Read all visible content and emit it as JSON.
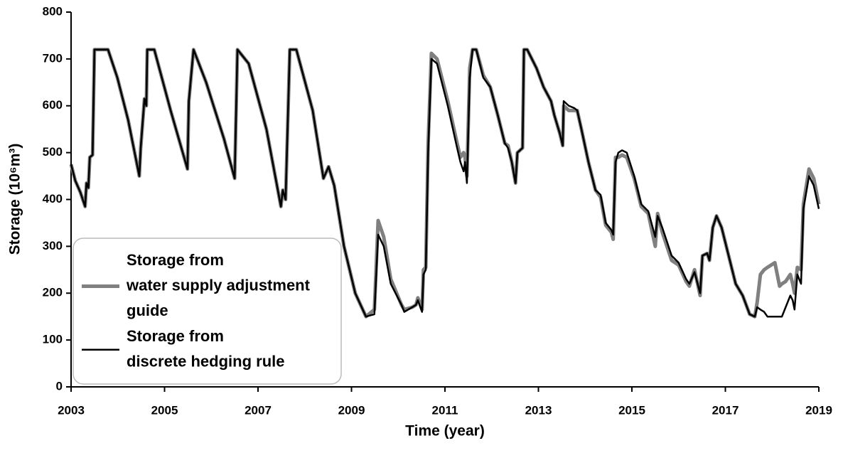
{
  "chart_data": {
    "type": "line",
    "xlabel": "Time (year)",
    "ylabel": "Storage (10⁶m³)",
    "xlim": [
      2003,
      2019
    ],
    "xticks": [
      2003,
      2005,
      2007,
      2009,
      2011,
      2013,
      2015,
      2017,
      2019
    ],
    "ylim": [
      0,
      800
    ],
    "yticks": [
      0,
      100,
      200,
      300,
      400,
      500,
      600,
      700,
      800
    ],
    "grid": false,
    "legend": "lower left",
    "x": [
      2003,
      2003.09,
      2003.2,
      2003.3,
      2003.33,
      2003.37,
      2003.4,
      2003.46,
      2003.5,
      2003.79,
      2003.99,
      2004.22,
      2004.46,
      2004.49,
      2004.57,
      2004.61,
      2004.63,
      2004.78,
      2005.13,
      2005.49,
      2005.52,
      2005.62,
      2005.89,
      2006.27,
      2006.5,
      2006.56,
      2006.8,
      2007.18,
      2007.49,
      2007.53,
      2007.59,
      2007.68,
      2007.82,
      2008.17,
      2008.4,
      2008.51,
      2008.63,
      2008.84,
      2009.08,
      2009.31,
      2009.49,
      2009.57,
      2009.69,
      2009.84,
      2010.07,
      2010.13,
      2010.3,
      2010.38,
      2010.42,
      2010.51,
      2010.54,
      2010.59,
      2010.64,
      2010.71,
      2010.83,
      2011.06,
      2011.26,
      2011.33,
      2011.4,
      2011.43,
      2011.47,
      2011.53,
      2011.59,
      2011.67,
      2011.82,
      2011.97,
      2012.13,
      2012.28,
      2012.35,
      2012.43,
      2012.51,
      2012.55,
      2012.66,
      2012.69,
      2012.76,
      2012.96,
      2013.11,
      2013.27,
      2013.34,
      2013.46,
      2013.52,
      2013.54,
      2013.65,
      2013.77,
      2013.83,
      2013.92,
      2014.07,
      2014.22,
      2014.33,
      2014.44,
      2014.56,
      2014.6,
      2014.65,
      2014.71,
      2014.79,
      2014.89,
      2015.05,
      2015.2,
      2015.35,
      2015.5,
      2015.55,
      2015.65,
      2015.85,
      2016,
      2016.16,
      2016.23,
      2016.34,
      2016.46,
      2016.51,
      2016.61,
      2016.66,
      2016.73,
      2016.81,
      2016.92,
      2017.07,
      2017.22,
      2017.37,
      2017.52,
      2017.63,
      2017.68,
      2017.75,
      2017.83,
      2017.9,
      2018.06,
      2018.16,
      2018.21,
      2018.29,
      2018.39,
      2018.44,
      2018.48,
      2018.54,
      2018.62,
      2018.67,
      2018.79,
      2018.89,
      2019
    ],
    "series": [
      {
        "name": "Storage from water supply adjustment guide",
        "color": "#808080",
        "values": [
          475,
          440,
          415,
          385,
          435,
          425,
          490,
          495,
          720,
          720,
          660,
          570,
          450,
          510,
          615,
          600,
          720,
          720,
          590,
          465,
          610,
          720,
          650,
          530,
          445,
          720,
          690,
          550,
          385,
          420,
          400,
          720,
          720,
          590,
          445,
          470,
          430,
          300,
          200,
          150,
          165,
          355,
          320,
          230,
          175,
          165,
          170,
          175,
          190,
          165,
          250,
          255,
          520,
          712,
          700,
          610,
          520,
          490,
          500,
          490,
          450,
          680,
          720,
          720,
          665,
          640,
          580,
          520,
          515,
          480,
          435,
          500,
          510,
          720,
          720,
          680,
          640,
          610,
          580,
          540,
          515,
          600,
          590,
          590,
          590,
          550,
          480,
          420,
          405,
          345,
          330,
          315,
          490,
          490,
          495,
          490,
          445,
          385,
          370,
          300,
          370,
          330,
          270,
          260,
          225,
          215,
          250,
          195,
          280,
          285,
          270,
          340,
          365,
          340,
          280,
          220,
          195,
          155,
          150,
          180,
          240,
          250,
          255,
          265,
          215,
          220,
          225,
          240,
          220,
          200,
          255,
          250,
          390,
          465,
          445,
          390
        ]
      },
      {
        "name": "Storage from discrete hedging rule",
        "color": "#000000",
        "values": [
          475,
          440,
          415,
          385,
          435,
          425,
          490,
          495,
          720,
          720,
          660,
          570,
          450,
          510,
          615,
          600,
          720,
          720,
          590,
          465,
          610,
          720,
          650,
          530,
          445,
          720,
          690,
          550,
          385,
          420,
          400,
          720,
          720,
          590,
          445,
          470,
          430,
          300,
          200,
          150,
          155,
          325,
          300,
          220,
          175,
          160,
          170,
          175,
          185,
          160,
          240,
          250,
          500,
          700,
          690,
          600,
          510,
          480,
          460,
          480,
          435,
          660,
          720,
          720,
          660,
          640,
          580,
          520,
          510,
          480,
          435,
          500,
          510,
          720,
          720,
          680,
          640,
          610,
          580,
          540,
          515,
          610,
          600,
          595,
          590,
          550,
          480,
          420,
          410,
          350,
          335,
          325,
          480,
          500,
          505,
          500,
          450,
          390,
          375,
          320,
          365,
          340,
          280,
          265,
          230,
          220,
          245,
          200,
          280,
          285,
          270,
          340,
          365,
          340,
          280,
          220,
          195,
          155,
          150,
          170,
          165,
          160,
          150,
          150,
          150,
          150,
          170,
          195,
          185,
          165,
          240,
          220,
          380,
          450,
          430,
          380
        ]
      }
    ]
  }
}
